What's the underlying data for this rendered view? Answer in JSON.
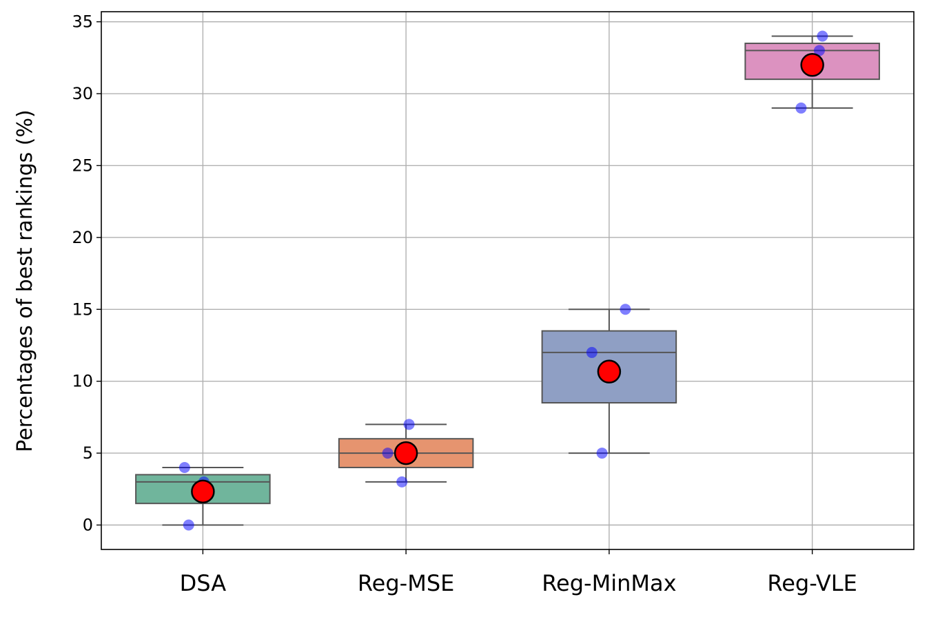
{
  "chart_data": {
    "type": "box",
    "title": "",
    "xlabel": "",
    "ylabel": "Percentages of best rankings (%)",
    "ylim": [
      -1.7,
      35.7
    ],
    "yticks": [
      0,
      5,
      10,
      15,
      20,
      25,
      30,
      35
    ],
    "grid": true,
    "categories": [
      "DSA",
      "Reg-MSE",
      "Reg-MinMax",
      "Reg-VLE"
    ],
    "colors": [
      "#70b59c",
      "#e6946f",
      "#8f9fc4",
      "#dc92c0"
    ],
    "point_color": "#0000ff",
    "mean_color": "#ff0000",
    "series": [
      {
        "category": "DSA",
        "points": [
          4,
          0,
          3
        ],
        "q1": 1.5,
        "median": 3,
        "q3": 3.5,
        "whisker_low": 0,
        "whisker_high": 4,
        "mean": 2.33
      },
      {
        "category": "Reg-MSE",
        "points": [
          5,
          7,
          3
        ],
        "q1": 4,
        "median": 5,
        "q3": 6,
        "whisker_low": 3,
        "whisker_high": 7,
        "mean": 5
      },
      {
        "category": "Reg-MinMax",
        "points": [
          15,
          12,
          5
        ],
        "q1": 8.5,
        "median": 12,
        "q3": 13.5,
        "whisker_low": 5,
        "whisker_high": 15,
        "mean": 10.67
      },
      {
        "category": "Reg-VLE",
        "points": [
          34,
          33,
          29
        ],
        "q1": 31,
        "median": 33,
        "q3": 33.5,
        "whisker_low": 29,
        "whisker_high": 34,
        "mean": 32
      }
    ]
  }
}
